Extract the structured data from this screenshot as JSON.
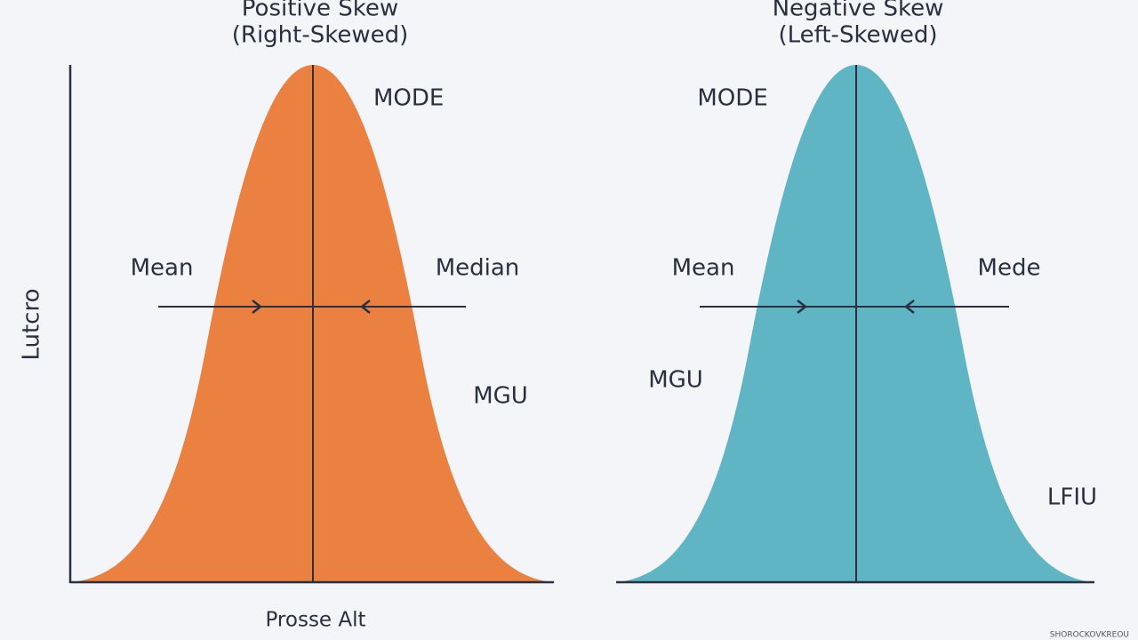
{
  "left_panel": {
    "title": "Positive Skew",
    "subtitle": "(Right-Skewed)",
    "labels": [
      "MODE",
      "Mean",
      "Median",
      "MGU"
    ],
    "y_axis_label": "Lutcro",
    "x_axis_label": "Prosse Alt"
  },
  "right_panel": {
    "title": "Negative Skew",
    "subtitle": "(Left-Skewed)",
    "labels": [
      "MODE",
      "Mean",
      "Mede",
      "MGU",
      "LFIU"
    ]
  },
  "watermark": "SHOROCKOVKREOU"
}
